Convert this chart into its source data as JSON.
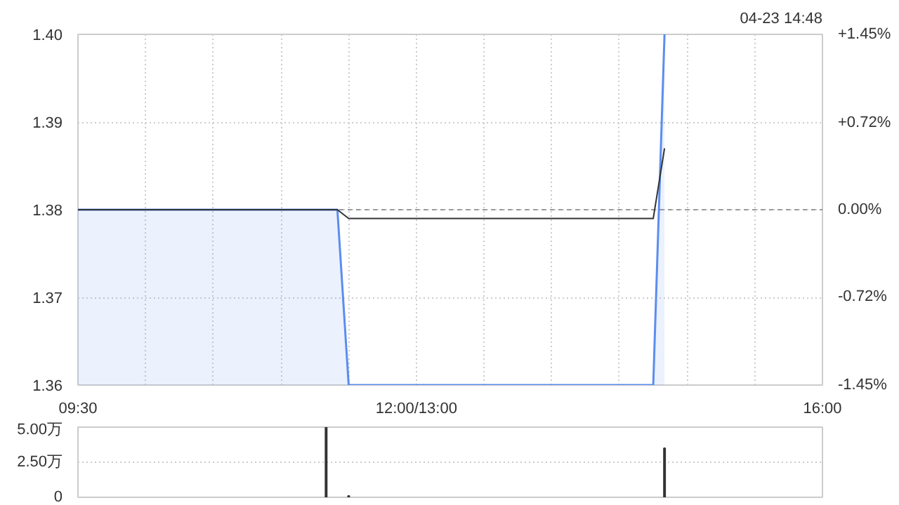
{
  "chart_data": [
    {
      "type": "area",
      "annotations": [
        "04-23 14:48"
      ],
      "categories": [
        "09:30",
        null,
        null,
        null,
        null,
        null,
        null,
        null,
        null,
        null,
        null,
        null,
        null,
        null,
        null,
        null,
        null,
        null,
        null,
        null,
        null,
        null,
        null,
        null,
        null,
        null,
        null,
        null,
        null,
        null,
        "12:00/13:00",
        null,
        null,
        null,
        null,
        null,
        null,
        null,
        null,
        null,
        null,
        null,
        null,
        null,
        null,
        null,
        null,
        null,
        null,
        null,
        null,
        null,
        null,
        null,
        null,
        null,
        null,
        null,
        null,
        null,
        null,
        null,
        null,
        null,
        null,
        null,
        "16:00"
      ],
      "ylim": [
        1.36,
        1.4
      ],
      "yticks": [
        1.36,
        1.37,
        1.38,
        1.39,
        {
          "value": 1.4,
          "label": "1.40"
        }
      ],
      "y2lim": [
        -1.45,
        1.45
      ],
      "y2ticks": [
        {
          "value": -1.45,
          "label": "-1.45%"
        },
        {
          "value": -0.72,
          "label": "-0.72%"
        },
        {
          "value": 0,
          "label": "0.00%"
        },
        {
          "value": 0.72,
          "label": "+0.72%"
        },
        {
          "value": 1.45,
          "label": "+1.45%"
        }
      ],
      "grid": true,
      "ref_lines": [
        {
          "axis": "y",
          "value": 1.38,
          "color": "#999999",
          "line_style": "dashed"
        }
      ],
      "series": [
        {
          "type": "area",
          "color": "#5b8def",
          "values": [
            1.38,
            1.38,
            1.38,
            1.38,
            1.38,
            1.38,
            1.38,
            1.38,
            1.38,
            1.38,
            1.38,
            1.38,
            1.38,
            1.38,
            1.38,
            1.38,
            1.38,
            1.38,
            1.38,
            1.38,
            1.38,
            1.38,
            1.38,
            1.38,
            1.36,
            1.36,
            1.36,
            1.36,
            1.36,
            1.36,
            1.36,
            1.36,
            1.36,
            1.36,
            1.36,
            1.36,
            1.36,
            1.36,
            1.36,
            1.36,
            1.36,
            1.36,
            1.36,
            1.36,
            1.36,
            1.36,
            1.36,
            1.36,
            1.36,
            1.36,
            1.36,
            1.36,
            1.4,
            null,
            null,
            null,
            null,
            null,
            null,
            null,
            null,
            null,
            null,
            null,
            null,
            null,
            null
          ]
        },
        {
          "type": "line",
          "color": "#333333",
          "values": [
            1.38,
            1.38,
            1.38,
            1.38,
            1.38,
            1.38,
            1.38,
            1.38,
            1.38,
            1.38,
            1.38,
            1.38,
            1.38,
            1.38,
            1.38,
            1.38,
            1.38,
            1.38,
            1.38,
            1.38,
            1.38,
            1.38,
            1.38,
            1.38,
            1.379,
            1.379,
            1.379,
            1.379,
            1.379,
            1.379,
            1.379,
            1.379,
            1.379,
            1.379,
            1.379,
            1.379,
            1.379,
            1.379,
            1.379,
            1.379,
            1.379,
            1.379,
            1.379,
            1.379,
            1.379,
            1.379,
            1.379,
            1.379,
            1.379,
            1.379,
            1.379,
            1.379,
            1.387,
            null,
            null,
            null,
            null,
            null,
            null,
            null,
            null,
            null,
            null,
            null,
            null,
            null,
            null
          ]
        }
      ]
    },
    {
      "type": "bar",
      "tick_labels": "y",
      "categories": [
        null,
        null,
        null,
        null,
        null,
        null,
        null,
        null,
        null,
        null,
        null,
        null,
        null,
        null,
        null,
        null,
        null,
        null,
        null,
        null,
        null,
        null,
        null,
        null,
        null,
        null,
        null,
        null,
        null,
        null,
        null,
        null,
        null,
        null,
        null,
        null,
        null,
        null,
        null,
        null,
        null,
        null,
        null,
        null,
        null,
        null,
        null,
        null,
        null,
        null,
        null,
        null,
        null,
        null,
        null,
        null,
        null,
        null,
        null,
        null,
        null,
        null,
        null,
        null,
        null,
        null,
        null
      ],
      "ylim": [
        0,
        5.0
      ],
      "yticks": [
        {
          "value": 0,
          "label": "0"
        },
        {
          "value": 2.5,
          "label": "2.50万"
        },
        {
          "value": 5,
          "label": "5.00万"
        }
      ],
      "grid": "y",
      "series": [
        {
          "color": "#333333",
          "values": [
            null,
            null,
            null,
            null,
            null,
            null,
            null,
            null,
            null,
            null,
            null,
            null,
            null,
            null,
            null,
            null,
            null,
            null,
            null,
            null,
            null,
            null,
            5.0,
            null,
            0.1,
            null,
            null,
            null,
            null,
            null,
            null,
            null,
            null,
            null,
            null,
            null,
            null,
            null,
            null,
            null,
            null,
            null,
            null,
            null,
            null,
            null,
            null,
            null,
            null,
            null,
            null,
            null,
            3.5,
            null,
            null,
            null,
            null,
            null,
            null,
            null,
            null,
            null,
            null,
            null,
            null,
            null,
            null
          ]
        }
      ]
    }
  ]
}
